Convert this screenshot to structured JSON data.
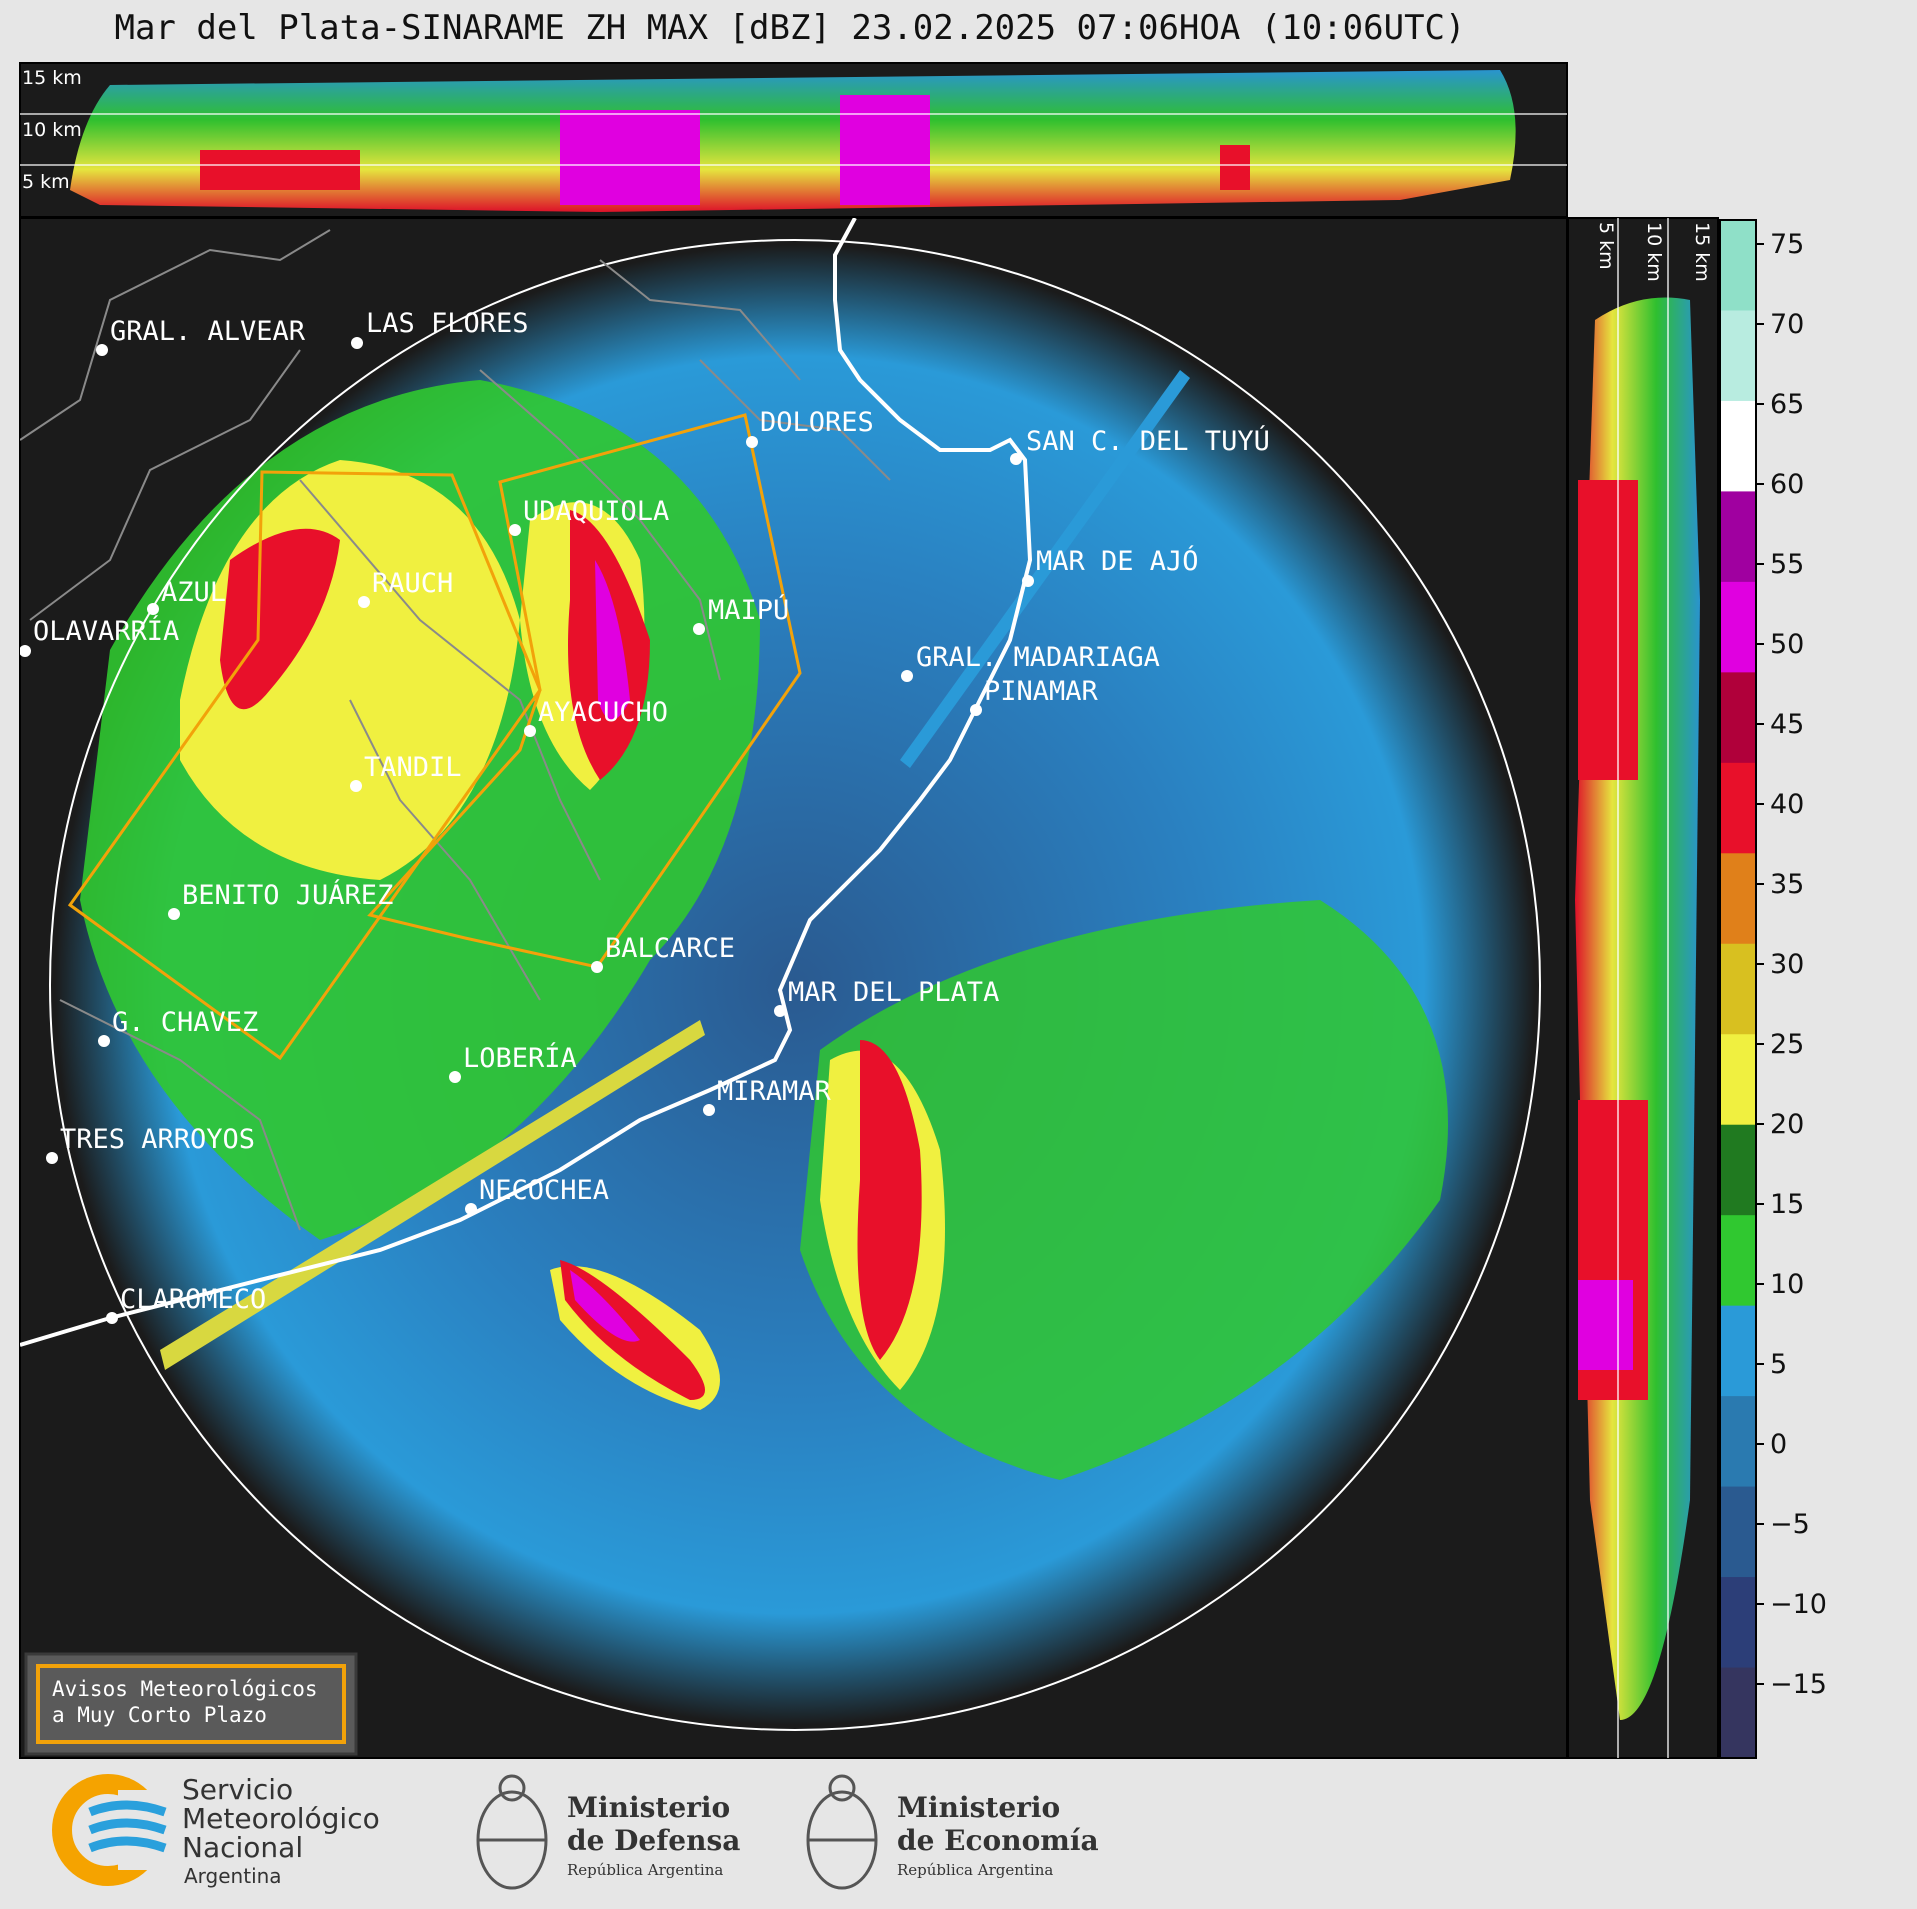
{
  "title": "Mar del Plata-SINARAME ZH MAX [dBZ] 23.02.2025 07:06HOA (10:06UTC)",
  "top_panel": {
    "labels": [
      "15 km",
      "10 km",
      "5 km"
    ]
  },
  "side_panel": {
    "labels": [
      "5 km",
      "10 km",
      "15 km"
    ]
  },
  "colorbar": {
    "unit": "dBZ",
    "ticks": [
      "75",
      "70",
      "65",
      "60",
      "55",
      "50",
      "45",
      "40",
      "35",
      "30",
      "25",
      "20",
      "15",
      "10",
      "5",
      "0",
      "−5",
      "−10",
      "−15"
    ],
    "colors": [
      "#8fe0c8",
      "#b8ece0",
      "#ffffff",
      "#a000a0",
      "#e000e0",
      "#b0003a",
      "#e8102a",
      "#e0801a",
      "#d8c020",
      "#f0f040",
      "#207a20",
      "#30c830",
      "#2a9ad8",
      "#2a7ab0",
      "#2a5a90",
      "#2c3e78",
      "#35355f"
    ]
  },
  "places": [
    {
      "name": "GRAL. ALVEAR"
    },
    {
      "name": "LAS FLORES"
    },
    {
      "name": "DOLORES"
    },
    {
      "name": "SAN C. DEL TUYÚ"
    },
    {
      "name": "UDAQUIOLA"
    },
    {
      "name": "MAR DE AJÓ"
    },
    {
      "name": "AZUL"
    },
    {
      "name": "RAUCH"
    },
    {
      "name": "MAIPÚ"
    },
    {
      "name": "OLAVARRÍA"
    },
    {
      "name": "GRAL. MADARIAGA"
    },
    {
      "name": "PINAMAR"
    },
    {
      "name": "AYACUCHO"
    },
    {
      "name": "TANDIL"
    },
    {
      "name": "BENITO JUÁREZ"
    },
    {
      "name": "BALCARCE"
    },
    {
      "name": "MAR DEL PLATA"
    },
    {
      "name": "G. CHAVEZ"
    },
    {
      "name": "LOBERÍA"
    },
    {
      "name": "MIRAMAR"
    },
    {
      "name": "TRES ARROYOS"
    },
    {
      "name": "NECOCHEA"
    },
    {
      "name": "CLAROMECO"
    }
  ],
  "legend": {
    "line1": "Avisos Meteorológicos",
    "line2": "a Muy Corto Plazo",
    "color": "#f2a20a"
  },
  "footer": {
    "smn": {
      "line1": "Servicio",
      "line2": "Meteorológico",
      "line3": "Nacional",
      "line4": "Argentina"
    },
    "defensa": {
      "line1": "Ministerio",
      "line2": "de Defensa",
      "line3": "República Argentina"
    },
    "economia": {
      "line1": "Ministerio",
      "line2": "de Economía",
      "line3": "República Argentina"
    }
  }
}
